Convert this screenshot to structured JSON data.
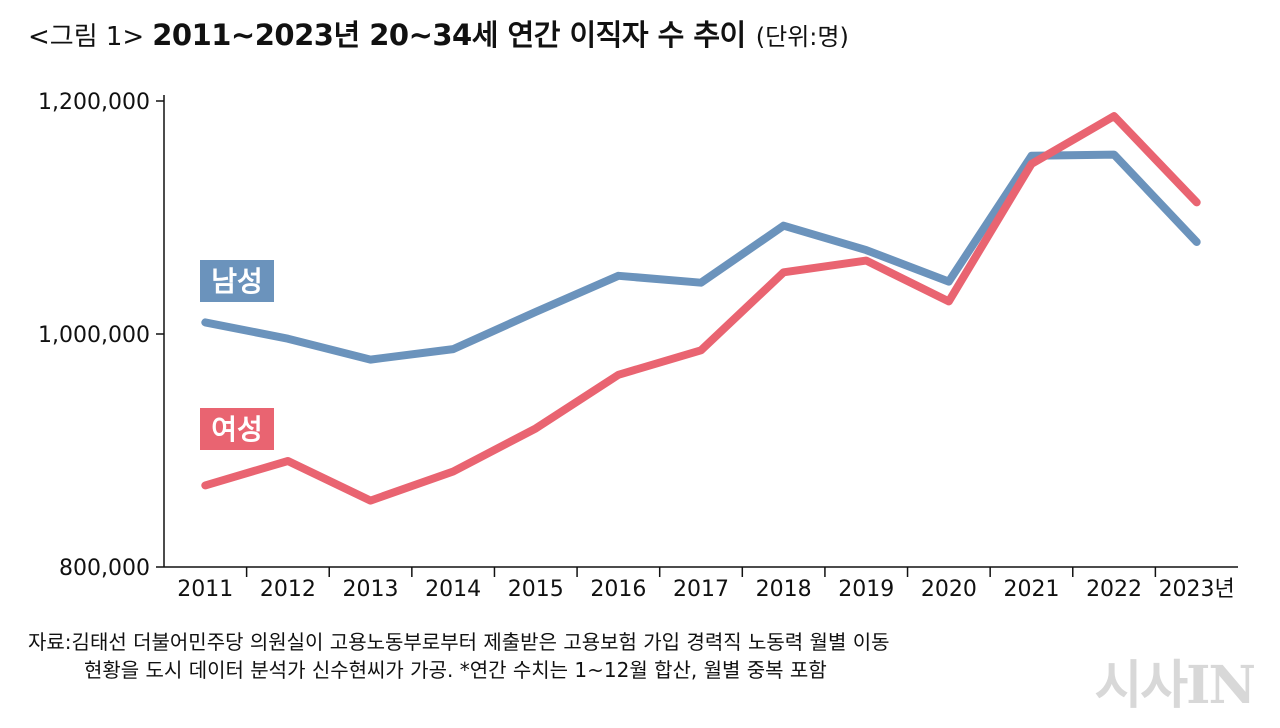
{
  "header": {
    "figure_number": "<그림 1>",
    "title": "2011~2023년 20~34세 연간 이직자 수 추이",
    "unit": "(단위:명)"
  },
  "chart_data": {
    "type": "line",
    "title": "2011~2023년 20~34세 연간 이직자 수 추이",
    "unit": "(단위:명)",
    "categories": [
      "2011",
      "2012",
      "2013",
      "2014",
      "2015",
      "2016",
      "2017",
      "2018",
      "2019",
      "2020",
      "2021",
      "2022",
      "2023년"
    ],
    "ylim": [
      800000,
      1200000
    ],
    "yticks": [
      800000,
      1000000,
      1200000
    ],
    "ytick_labels": [
      "800,000",
      "1,000,000",
      "1,200,000"
    ],
    "grid": false,
    "series": [
      {
        "name": "남성",
        "color": "#6b93bc",
        "values": [
          1010000,
          996000,
          978000,
          987000,
          1019000,
          1050000,
          1044000,
          1093000,
          1072000,
          1045000,
          1153000,
          1154000,
          1079000
        ]
      },
      {
        "name": "여성",
        "color": "#e96471",
        "values": [
          870000,
          891000,
          857000,
          882000,
          919000,
          965000,
          986000,
          1053000,
          1063000,
          1028000,
          1146000,
          1187000,
          1113000
        ]
      }
    ],
    "colors": {
      "axis": "#111111"
    }
  },
  "source": {
    "line1": "자료:김태선 더불어민주당 의원실이 고용노동부로부터 제출받은 고용보험 가입 경력직 노동력 월별 이동",
    "line2": "현황을 도시 데이터 분석가 신수현씨가 가공. *연간 수치는 1~12월 합산, 월별 중복 포함"
  },
  "watermark": "시사IN"
}
